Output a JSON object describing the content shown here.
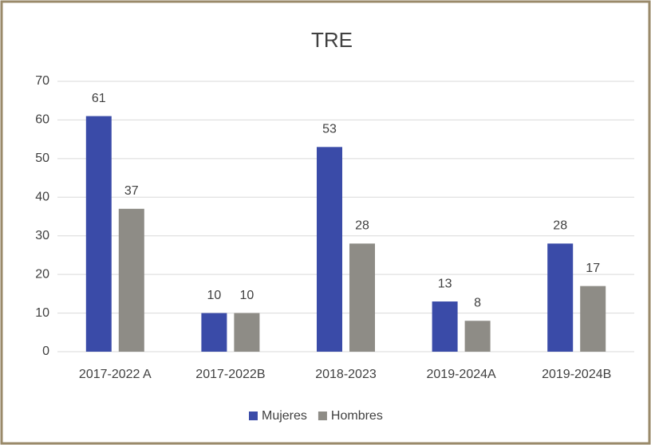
{
  "chart_data": {
    "type": "bar",
    "title": "TRE",
    "categories": [
      "2017-2022 A",
      "2017-2022B",
      "2018-2023",
      "2019-2024A",
      "2019-2024B"
    ],
    "series": [
      {
        "name": "Mujeres",
        "color": "#3a4ba8",
        "values": [
          61,
          10,
          53,
          13,
          28
        ]
      },
      {
        "name": "Hombres",
        "color": "#8e8c86",
        "values": [
          37,
          10,
          28,
          8,
          17
        ]
      }
    ],
    "ylim": [
      0,
      70
    ],
    "yticks": [
      0,
      10,
      20,
      30,
      40,
      50,
      60,
      70
    ],
    "grid": true,
    "legend": "bottom"
  }
}
